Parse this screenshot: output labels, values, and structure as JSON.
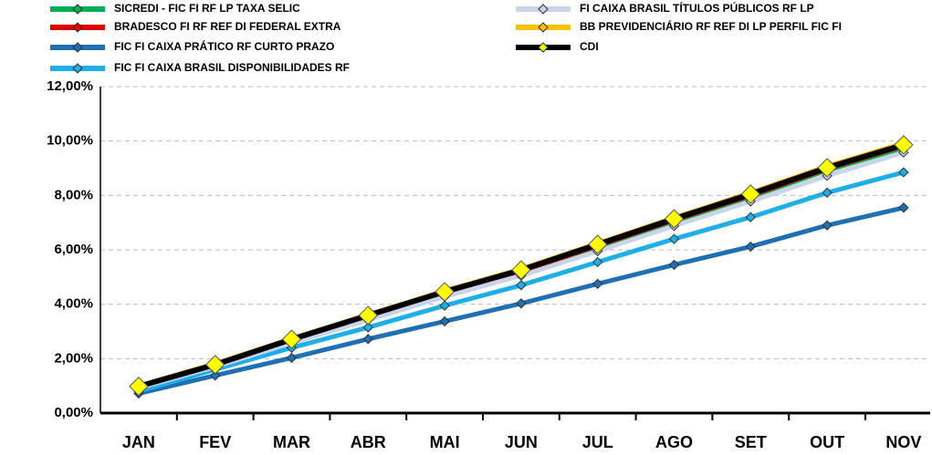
{
  "chart_data": {
    "type": "line",
    "categories": [
      "JAN",
      "FEV",
      "MAR",
      "ABR",
      "MAI",
      "JUN",
      "JUL",
      "AGO",
      "SET",
      "OUT",
      "NOV"
    ],
    "series": [
      {
        "name": "SICREDI - FIC FI RF LP TAXA SELIC",
        "color": "#00b050",
        "values": [
          0.95,
          1.74,
          2.65,
          3.52,
          4.38,
          5.18,
          6.1,
          7.04,
          7.95,
          8.92,
          9.75
        ]
      },
      {
        "name": "BRADESCO FI RF REF DI FEDERAL EXTRA",
        "color": "#e00000",
        "values": [
          0.96,
          1.76,
          2.67,
          3.55,
          4.42,
          5.22,
          6.15,
          7.1,
          8.0,
          8.98,
          9.82
        ]
      },
      {
        "name": "FIC FI CAIXA PRÁTICO RF CURTO PRAZO",
        "color": "#1f6fb5",
        "values": [
          0.72,
          1.38,
          2.03,
          2.72,
          3.37,
          4.03,
          4.75,
          5.45,
          6.12,
          6.9,
          7.55
        ]
      },
      {
        "name": "FIC FI CAIXA BRASIL DISPONIBILIDADES RF",
        "color": "#1eaee8",
        "values": [
          0.8,
          1.6,
          2.4,
          3.15,
          3.95,
          4.7,
          5.55,
          6.4,
          7.2,
          8.1,
          8.85
        ]
      },
      {
        "name": "FI CAIXA BRASIL TÍTULOS PÚBLICOS RF LP",
        "color": "#c9d3ea",
        "values": [
          0.92,
          1.7,
          2.58,
          3.42,
          4.28,
          5.05,
          5.95,
          6.88,
          7.78,
          8.72,
          9.58
        ]
      },
      {
        "name": "BB PREVIDENCIÁRIO RF REF DI LP PERFIL FIC FI",
        "color": "#ffc000",
        "values": [
          1.0,
          1.82,
          2.74,
          3.62,
          4.5,
          5.3,
          6.24,
          7.18,
          8.1,
          9.08,
          9.92
        ]
      },
      {
        "name": "CDI",
        "color": "#000000",
        "marker_color": "#ffff00",
        "values": [
          0.98,
          1.78,
          2.71,
          3.59,
          4.46,
          5.26,
          6.2,
          7.14,
          8.05,
          9.02,
          9.86
        ]
      }
    ],
    "ylim": [
      0,
      12
    ],
    "yticks": [
      {
        "value": 0,
        "label": "0,00%"
      },
      {
        "value": 2,
        "label": "2,00%"
      },
      {
        "value": 4,
        "label": "4,00%"
      },
      {
        "value": 6,
        "label": "6,00%"
      },
      {
        "value": 8,
        "label": "8,00%"
      },
      {
        "value": 10,
        "label": "10,00%"
      },
      {
        "value": 12,
        "label": "12,00%"
      }
    ],
    "grid": true
  }
}
